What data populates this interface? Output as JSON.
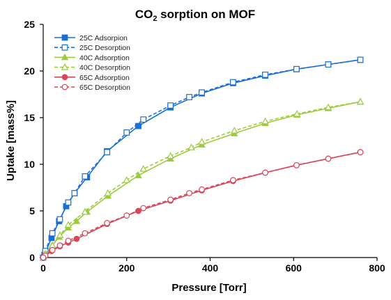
{
  "chart_data": {
    "type": "line",
    "title_main": "CO",
    "title_sub": "2",
    "title_rest": " sorption on MOF",
    "xlabel": "Pressure [Torr]",
    "ylabel": "Uptake [mass%]",
    "xlim": [
      0,
      800
    ],
    "ylim": [
      0,
      25
    ],
    "xticks": [
      0,
      200,
      400,
      600,
      800
    ],
    "yticks": [
      0,
      5,
      10,
      15,
      20,
      25
    ],
    "grid": false,
    "legend_position": "top-left",
    "series": [
      {
        "name": "25C Adsorpion",
        "color": "#1a6fd6",
        "dash": false,
        "marker": "square-filled",
        "x": [
          0,
          3,
          20,
          38,
          55,
          75,
          105,
          153,
          228,
          305,
          380,
          455,
          532,
          607,
          683,
          760
        ],
        "y": [
          0,
          0.3,
          2.1,
          3.9,
          5.5,
          6.9,
          8.6,
          11.4,
          14.1,
          16.1,
          17.6,
          18.7,
          19.5,
          20.2,
          20.7,
          21.2
        ]
      },
      {
        "name": "25C Desorption",
        "color": "#1a6fd6",
        "dash": true,
        "marker": "square-open",
        "x": [
          760,
          683,
          607,
          532,
          455,
          380,
          350,
          305,
          240,
          200,
          153,
          100,
          75,
          60,
          40,
          22,
          5,
          0
        ],
        "y": [
          21.2,
          20.7,
          20.2,
          19.6,
          18.8,
          17.7,
          17.2,
          16.3,
          14.8,
          13.4,
          11.3,
          8.7,
          6.9,
          5.9,
          4.1,
          2.6,
          0.7,
          0
        ]
      },
      {
        "name": "40C Adsorption",
        "color": "#9ccc3c",
        "dash": false,
        "marker": "triangle-filled",
        "x": [
          0,
          3,
          20,
          38,
          60,
          80,
          105,
          155,
          228,
          305,
          380,
          458,
          532,
          608,
          683,
          760
        ],
        "y": [
          0,
          0.3,
          1.2,
          2.2,
          3.2,
          3.9,
          4.9,
          6.6,
          8.8,
          10.6,
          12.1,
          13.3,
          14.4,
          15.3,
          16.0,
          16.7
        ]
      },
      {
        "name": "40C Desorption",
        "color": "#9ccc3c",
        "dash": true,
        "marker": "triangle-open",
        "x": [
          760,
          683,
          608,
          532,
          458,
          380,
          355,
          305,
          240,
          200,
          155,
          100,
          60,
          40,
          22,
          5,
          0
        ],
        "y": [
          16.7,
          16.1,
          15.4,
          14.6,
          13.6,
          12.4,
          11.8,
          10.9,
          9.5,
          8.3,
          6.9,
          4.9,
          3.5,
          2.4,
          1.3,
          0.4,
          0
        ]
      },
      {
        "name": "65C Adsorption",
        "color": "#d9475a",
        "dash": false,
        "marker": "circle-filled",
        "x": [
          0,
          3,
          20,
          40,
          60,
          80,
          153,
          228,
          305,
          380,
          455,
          532,
          607,
          683,
          760
        ],
        "y": [
          0,
          0.1,
          0.7,
          1.2,
          1.6,
          2.0,
          3.6,
          5.0,
          6.1,
          7.2,
          8.2,
          9.1,
          9.9,
          10.6,
          11.3
        ]
      },
      {
        "name": "65C Desorption",
        "color": "#d9475a",
        "dash": true,
        "marker": "circle-open",
        "x": [
          760,
          683,
          607,
          532,
          455,
          380,
          350,
          305,
          240,
          200,
          153,
          100,
          60,
          40,
          22,
          5,
          0
        ],
        "y": [
          11.3,
          10.6,
          9.9,
          9.1,
          8.3,
          7.3,
          6.9,
          6.2,
          5.3,
          4.5,
          3.7,
          2.6,
          1.8,
          1.3,
          0.8,
          0.2,
          0
        ]
      }
    ]
  }
}
